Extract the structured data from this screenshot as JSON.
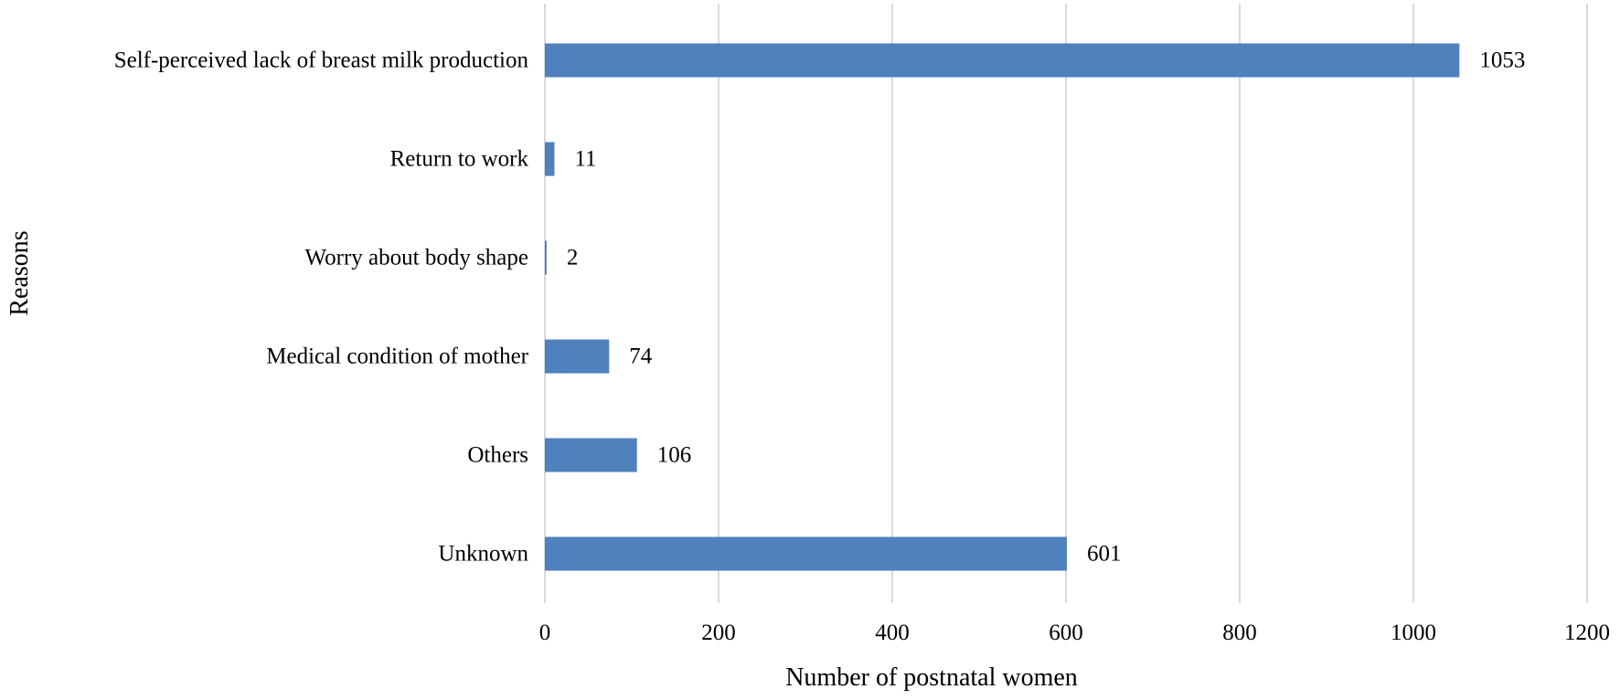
{
  "chart_data": {
    "type": "bar",
    "orientation": "horizontal",
    "categories": [
      "Self-perceived lack of breast milk production",
      "Return to work",
      "Worry about body shape",
      "Medical condition of mother",
      "Others",
      "Unknown"
    ],
    "values": [
      1053,
      11,
      2,
      74,
      106,
      601
    ],
    "data_labels": [
      "1053",
      "11",
      "2",
      "74",
      "106",
      "601"
    ],
    "xlabel": "Number of  postnatal women",
    "ylabel": "Reasons",
    "xlim": [
      0,
      1200
    ],
    "xticks": [
      0,
      200,
      400,
      600,
      800,
      1000,
      1200
    ],
    "xtick_labels": [
      "0",
      "200",
      "400",
      "600",
      "800",
      "1000",
      "1200"
    ],
    "grid": "vertical",
    "legend": "none",
    "bar_color": "#4f81bd"
  }
}
